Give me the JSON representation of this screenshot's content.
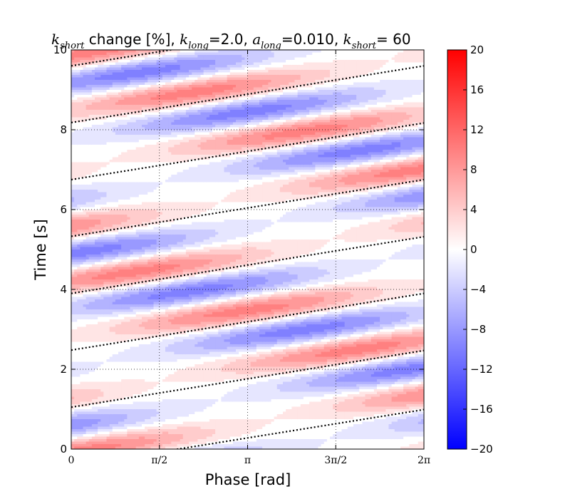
{
  "chart_data": {
    "type": "heatmap",
    "title": {
      "parts": [
        {
          "text": "k",
          "style": "math"
        },
        {
          "text": "short",
          "style": "sub"
        },
        {
          "text": " change [%], ",
          "style": "plain"
        },
        {
          "text": "k",
          "style": "math"
        },
        {
          "text": "long",
          "style": "sub"
        },
        {
          "text": "=2.0, ",
          "style": "plain"
        },
        {
          "text": "a",
          "style": "math"
        },
        {
          "text": "long",
          "style": "sub"
        },
        {
          "text": "=0.010, ",
          "style": "plain"
        },
        {
          "text": "k",
          "style": "math"
        },
        {
          "text": "short",
          "style": "sub"
        },
        {
          "text": "= 60",
          "style": "plain"
        }
      ]
    },
    "xlabel": "Phase [rad]",
    "ylabel": "Time [s]",
    "xlim": [
      0,
      6.283185
    ],
    "ylim": [
      0,
      10
    ],
    "xticks": [
      0,
      1.570796,
      3.141593,
      4.712389,
      6.283185
    ],
    "xtick_labels": [
      "0",
      "π/2",
      "π",
      "3π/2",
      "2π"
    ],
    "yticks": [
      0,
      2,
      4,
      6,
      8,
      10
    ],
    "ytick_labels": [
      "0",
      "2",
      "4",
      "6",
      "8",
      "10"
    ],
    "grid": true,
    "colorbar": {
      "vmin": -20,
      "vmax": 20,
      "ticks": [
        20,
        16,
        12,
        8,
        4,
        0,
        -4,
        -8,
        -12,
        -16,
        -20
      ],
      "tick_labels": [
        "20",
        "16",
        "12",
        "8",
        "4",
        "0",
        "−4",
        "−8",
        "−12",
        "−16",
        "−20"
      ],
      "colormap": [
        "#0000ff",
        "#ffffff",
        "#ff0000"
      ]
    },
    "field": {
      "description": "k_short change (%) over phase and time; diagonal red/blue stripes",
      "amplitude_max": 10,
      "stripe_period_s": 1.42,
      "drift_s_per_rad": 0.226,
      "envelope_period_s": 5.0
    },
    "dotted_lines": {
      "time_offsets_at_phase_0": [
        -0.43,
        1.05,
        2.48,
        3.9,
        5.33,
        6.75,
        8.18,
        9.6
      ],
      "slope_s_per_rad": 0.226,
      "color": "#000000"
    }
  }
}
